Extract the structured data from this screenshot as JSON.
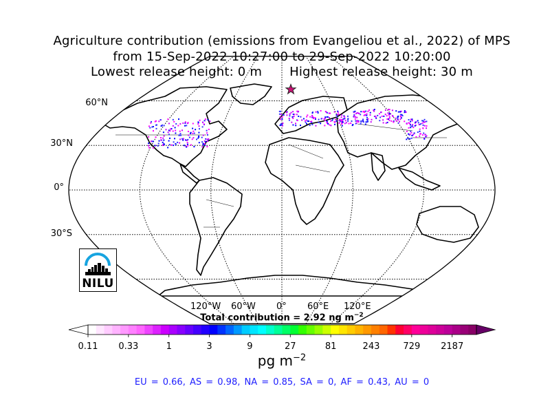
{
  "title": {
    "line1": "Agriculture contribution (emissions from Evangeliou et al., 2022) of MPS",
    "line2": "from 15-Sep-2022 10:27:00 to 29-Sep-2022 10:20:00",
    "line3_left": "Lowest release height: 0 m",
    "line3_right": "Highest release height: 30 m"
  },
  "map": {
    "projection": "Robinson",
    "lat_labels": [
      "60°N",
      "30°N",
      "0°",
      "30°S"
    ],
    "lon_labels": [
      "120°W",
      "60°W",
      "0°",
      "60°E",
      "120°E"
    ],
    "release_marker": "star",
    "highlight_colors": [
      "#ff00ff",
      "#cc00ff",
      "#3333ff",
      "#0000ff"
    ]
  },
  "total": {
    "prefix": "Total contribution = 2.92 ng m",
    "exponent": "−2"
  },
  "colorbar": {
    "ticks": [
      "0.11",
      "0.33",
      "1",
      "3",
      "9",
      "27",
      "81",
      "243",
      "729",
      "2187"
    ],
    "colors": [
      "#ffffff",
      "#ffe6ff",
      "#ffccff",
      "#ffb3ff",
      "#ff99ff",
      "#ff80ff",
      "#ff66ff",
      "#ee44ff",
      "#dd22ff",
      "#cc00ff",
      "#aa00ff",
      "#8800ff",
      "#6600ff",
      "#4400ff",
      "#2200ff",
      "#0000ff",
      "#0033ff",
      "#0066ff",
      "#0099ff",
      "#00ccff",
      "#00e5ff",
      "#00ffff",
      "#00ffcc",
      "#00ff99",
      "#00ff66",
      "#00ff33",
      "#33ff00",
      "#66ff00",
      "#99ff00",
      "#ccff00",
      "#ffff00",
      "#ffe600",
      "#ffcc00",
      "#ffb300",
      "#ff9900",
      "#ff8000",
      "#ff6600",
      "#ff3300",
      "#ff0033",
      "#ff0066",
      "#ff0099",
      "#ee0099",
      "#dd0099",
      "#cc0099",
      "#bb0099",
      "#aa0088",
      "#990077",
      "#880066"
    ],
    "over_color": "#660066",
    "unit_base": "pg m",
    "unit_exp": "−2"
  },
  "regions_text": "EU = 0.66,  AS = 0.98,  NA = 0.85,  SA = 0,  AF = 0.43,  AU = 0",
  "logo": {
    "text": "NILU",
    "arc_color": "#17a4e0"
  }
}
